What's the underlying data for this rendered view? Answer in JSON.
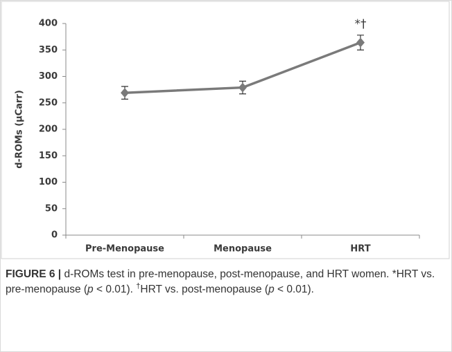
{
  "chart_data": {
    "type": "line",
    "categories": [
      "Pre-Menopause",
      "Menopause",
      "HRT"
    ],
    "series": [
      {
        "color": "#7a7a7a",
        "values": [
          269,
          279,
          364
        ],
        "errors": [
          12,
          12,
          14
        ]
      }
    ],
    "ylabel": "d-ROMs (µCarr)",
    "ylim": [
      0,
      400
    ],
    "yticks": [
      0,
      50,
      100,
      150,
      200,
      250,
      300,
      350,
      400
    ],
    "annotations": [
      {
        "text": "*†",
        "category": 2
      }
    ]
  },
  "caption": [
    {
      "text": "FIGURE 6 |",
      "style": "bold"
    },
    {
      "text": " d-ROMs test in pre-menopause, post-menopause, and HRT women. *HRT vs. pre-menopause (",
      "style": "plain"
    },
    {
      "text": "p",
      "style": "italic"
    },
    {
      "text": " < 0.01). ",
      "style": "plain"
    },
    {
      "text": "†",
      "style": "sup"
    },
    {
      "text": "HRT vs. post-menopause (",
      "style": "plain"
    },
    {
      "text": "p",
      "style": "italic"
    },
    {
      "text": " < 0.01).",
      "style": "plain"
    }
  ]
}
